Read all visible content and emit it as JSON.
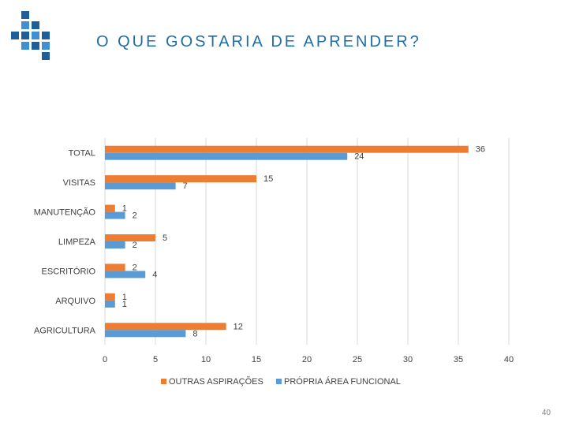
{
  "slide": {
    "title": "O QUE GOSTARIA DE APRENDER?",
    "page_number": "40"
  },
  "colors": {
    "title": "#1f6da8",
    "logo_dark": "#1f5f99",
    "logo_light": "#3f8fd2",
    "series_orange": "#ed7d31",
    "series_blue": "#5b9bd5",
    "gridline": "#d9d9d9",
    "axis_text": "#404040"
  },
  "chart_data": {
    "type": "bar",
    "orientation": "horizontal",
    "categories": [
      "TOTAL",
      "VISITAS",
      "MANUTENÇÃO",
      "LIMPEZA",
      "ESCRITÓRIO",
      "ARQUIVO",
      "AGRICULTURA"
    ],
    "series": [
      {
        "name": "OUTRAS ASPIRAÇÕES",
        "color": "#ed7d31",
        "values": [
          36,
          15,
          1,
          5,
          2,
          1,
          12
        ]
      },
      {
        "name": "PRÓPRIA ÁREA FUNCIONAL",
        "color": "#5b9bd5",
        "values": [
          24,
          7,
          2,
          2,
          4,
          1,
          8
        ]
      }
    ],
    "xlim": [
      0,
      40
    ],
    "x_ticks": [
      "0",
      "5",
      "10",
      "15",
      "20",
      "25",
      "30",
      "35",
      "40"
    ],
    "grid": true,
    "legend_position": "bottom",
    "data_labels": true
  }
}
